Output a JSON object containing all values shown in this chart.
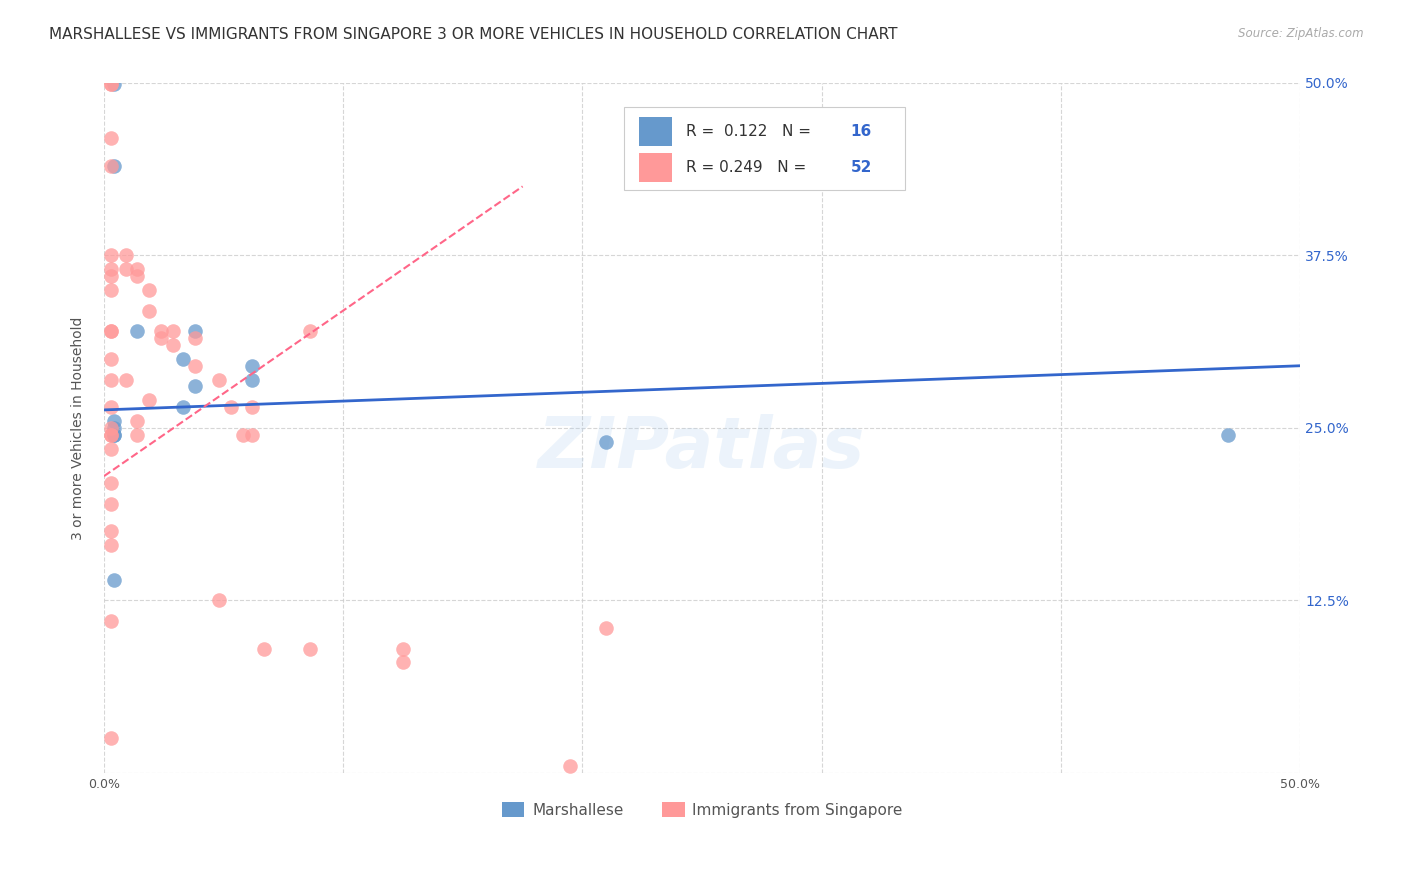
{
  "title": "MARSHALLESE VS IMMIGRANTS FROM SINGAPORE 3 OR MORE VEHICLES IN HOUSEHOLD CORRELATION CHART",
  "source": "Source: ZipAtlas.com",
  "ylabel": "3 or more Vehicles in Household",
  "xlim": [
    0,
    0.5
  ],
  "ylim": [
    0,
    0.5
  ],
  "xticks": [
    0.0,
    0.1,
    0.2,
    0.3,
    0.4,
    0.5
  ],
  "xticklabels": [
    "0.0%",
    "",
    "",
    "",
    "",
    "50.0%"
  ],
  "yticks": [
    0.0,
    0.125,
    0.25,
    0.375,
    0.5
  ],
  "yticklabels": [
    "",
    "12.5%",
    "25.0%",
    "37.5%",
    "50.0%"
  ],
  "blue_color": "#6699CC",
  "pink_color": "#FF9999",
  "blue_line_color": "#3366CC",
  "pink_line_color": "#FF6688",
  "legend_R_blue": "0.122",
  "legend_N_blue": "16",
  "legend_R_pink": "0.249",
  "legend_N_pink": "52",
  "legend_label_blue": "Marshallese",
  "legend_label_pink": "Immigrants from Singapore",
  "blue_scatter_x": [
    0.004,
    0.004,
    0.014,
    0.038,
    0.033,
    0.038,
    0.033,
    0.004,
    0.004,
    0.004,
    0.004,
    0.004,
    0.062,
    0.062,
    0.21,
    0.47
  ],
  "blue_scatter_y": [
    0.499,
    0.44,
    0.32,
    0.32,
    0.3,
    0.28,
    0.265,
    0.255,
    0.25,
    0.245,
    0.245,
    0.14,
    0.295,
    0.285,
    0.24,
    0.245
  ],
  "pink_scatter_x": [
    0.003,
    0.003,
    0.003,
    0.003,
    0.003,
    0.003,
    0.003,
    0.003,
    0.003,
    0.003,
    0.003,
    0.003,
    0.003,
    0.003,
    0.003,
    0.003,
    0.003,
    0.003,
    0.003,
    0.003,
    0.003,
    0.003,
    0.003,
    0.009,
    0.009,
    0.009,
    0.014,
    0.014,
    0.014,
    0.014,
    0.019,
    0.019,
    0.019,
    0.024,
    0.024,
    0.029,
    0.029,
    0.038,
    0.038,
    0.048,
    0.048,
    0.053,
    0.058,
    0.062,
    0.062,
    0.067,
    0.086,
    0.086,
    0.125,
    0.125,
    0.195,
    0.21
  ],
  "pink_scatter_y": [
    0.499,
    0.499,
    0.46,
    0.44,
    0.375,
    0.365,
    0.36,
    0.35,
    0.32,
    0.32,
    0.3,
    0.285,
    0.265,
    0.25,
    0.245,
    0.245,
    0.235,
    0.21,
    0.195,
    0.175,
    0.165,
    0.11,
    0.025,
    0.375,
    0.365,
    0.285,
    0.365,
    0.36,
    0.255,
    0.245,
    0.35,
    0.335,
    0.27,
    0.32,
    0.315,
    0.32,
    0.31,
    0.315,
    0.295,
    0.285,
    0.125,
    0.265,
    0.245,
    0.265,
    0.245,
    0.09,
    0.09,
    0.32,
    0.09,
    0.08,
    0.005,
    0.105
  ],
  "blue_trend_x": [
    0.0,
    0.5
  ],
  "blue_trend_y": [
    0.263,
    0.295
  ],
  "pink_trend_x": [
    0.0,
    0.175
  ],
  "pink_trend_y": [
    0.215,
    0.425
  ],
  "watermark": "ZIPatlas",
  "background_color": "#FFFFFF",
  "grid_color": "#CCCCCC",
  "title_color": "#333333",
  "axis_label_color": "#555555",
  "right_ytick_color": "#3366CC",
  "title_fontsize": 11,
  "axis_label_fontsize": 10,
  "tick_fontsize": 9,
  "legend_fontsize": 12
}
